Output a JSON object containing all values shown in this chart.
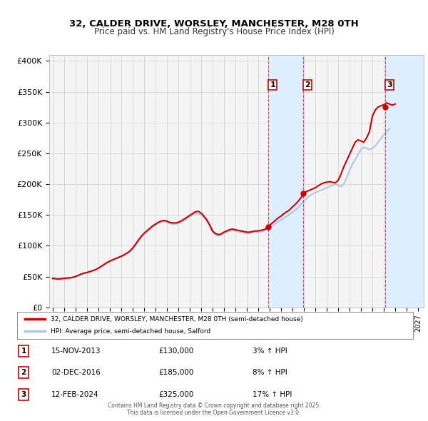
{
  "title_line1": "32, CALDER DRIVE, WORSLEY, MANCHESTER, M28 0TH",
  "title_line2": "Price paid vs. HM Land Registry's House Price Index (HPI)",
  "xlabel": "",
  "ylabel": "",
  "ylim": [
    0,
    410000
  ],
  "xlim_start": 1995.0,
  "xlim_end": 2027.5,
  "yticks": [
    0,
    50000,
    100000,
    150000,
    200000,
    250000,
    300000,
    350000,
    400000
  ],
  "ytick_labels": [
    "£0",
    "£50K",
    "£100K",
    "£150K",
    "£200K",
    "£250K",
    "£300K",
    "£350K",
    "£400K"
  ],
  "xticks": [
    1995,
    1996,
    1997,
    1998,
    1999,
    2000,
    2001,
    2002,
    2003,
    2004,
    2005,
    2006,
    2007,
    2008,
    2009,
    2010,
    2011,
    2012,
    2013,
    2014,
    2015,
    2016,
    2017,
    2018,
    2019,
    2020,
    2021,
    2022,
    2023,
    2024,
    2025,
    2026,
    2027
  ],
  "grid_color": "#cccccc",
  "bg_color": "#ffffff",
  "plot_bg_color": "#f5f5f5",
  "hpi_color": "#aac8e8",
  "price_color": "#cc0000",
  "sale_dot_color": "#cc0000",
  "event_shade_color": "#ddeeff",
  "transaction_lines_color": "#dd0000",
  "transactions": [
    {
      "date_year": 2013.88,
      "price": 130000,
      "label": "1",
      "percent": "3%",
      "date_str": "15-NOV-2013",
      "price_str": "£130,000"
    },
    {
      "date_year": 2016.92,
      "price": 185000,
      "label": "2",
      "percent": "8%",
      "date_str": "02-DEC-2016",
      "price_str": "£185,000"
    },
    {
      "date_year": 2024.12,
      "price": 325000,
      "label": "3",
      "percent": "17%",
      "date_str": "12-FEB-2024",
      "price_str": "£325,000"
    }
  ],
  "legend_property_label": "32, CALDER DRIVE, WORSLEY, MANCHESTER, M28 0TH (semi-detached house)",
  "legend_hpi_label": "HPI: Average price, semi-detached house, Salford",
  "footer": "Contains HM Land Registry data © Crown copyright and database right 2025.\nThis data is licensed under the Open Government Licence v3.0.",
  "hpi_data_x": [
    1995.0,
    1995.25,
    1995.5,
    1995.75,
    1996.0,
    1996.25,
    1996.5,
    1996.75,
    1997.0,
    1997.25,
    1997.5,
    1997.75,
    1998.0,
    1998.25,
    1998.5,
    1998.75,
    1999.0,
    1999.25,
    1999.5,
    1999.75,
    2000.0,
    2000.25,
    2000.5,
    2000.75,
    2001.0,
    2001.25,
    2001.5,
    2001.75,
    2002.0,
    2002.25,
    2002.5,
    2002.75,
    2003.0,
    2003.25,
    2003.5,
    2003.75,
    2004.0,
    2004.25,
    2004.5,
    2004.75,
    2005.0,
    2005.25,
    2005.5,
    2005.75,
    2006.0,
    2006.25,
    2006.5,
    2006.75,
    2007.0,
    2007.25,
    2007.5,
    2007.75,
    2008.0,
    2008.25,
    2008.5,
    2008.75,
    2009.0,
    2009.25,
    2009.5,
    2009.75,
    2010.0,
    2010.25,
    2010.5,
    2010.75,
    2011.0,
    2011.25,
    2011.5,
    2011.75,
    2012.0,
    2012.25,
    2012.5,
    2012.75,
    2013.0,
    2013.25,
    2013.5,
    2013.75,
    2014.0,
    2014.25,
    2014.5,
    2014.75,
    2015.0,
    2015.25,
    2015.5,
    2015.75,
    2016.0,
    2016.25,
    2016.5,
    2016.75,
    2017.0,
    2017.25,
    2017.5,
    2017.75,
    2018.0,
    2018.25,
    2018.5,
    2018.75,
    2019.0,
    2019.25,
    2019.5,
    2019.75,
    2020.0,
    2020.25,
    2020.5,
    2020.75,
    2021.0,
    2021.25,
    2021.5,
    2021.75,
    2022.0,
    2022.25,
    2022.5,
    2022.75,
    2023.0,
    2023.25,
    2023.5,
    2023.75,
    2024.0,
    2024.25,
    2024.5
  ],
  "hpi_data_y": [
    46000,
    45500,
    45000,
    45500,
    46000,
    46500,
    47000,
    48000,
    49500,
    51000,
    53000,
    55000,
    56000,
    57500,
    59000,
    60500,
    63000,
    66000,
    69000,
    72000,
    74000,
    76000,
    78000,
    80000,
    82000,
    84000,
    87000,
    90000,
    94000,
    100000,
    107000,
    113000,
    118000,
    122000,
    126000,
    130000,
    133000,
    136000,
    138000,
    139000,
    138000,
    136000,
    135000,
    135000,
    136000,
    138000,
    141000,
    144000,
    147000,
    150000,
    152000,
    152000,
    150000,
    146000,
    140000,
    132000,
    122000,
    118000,
    116000,
    117000,
    120000,
    122000,
    124000,
    125000,
    124000,
    123000,
    122000,
    121000,
    120000,
    120000,
    121000,
    122000,
    122000,
    123000,
    124000,
    126000,
    129000,
    132000,
    136000,
    139000,
    142000,
    145000,
    148000,
    151000,
    154000,
    158000,
    162000,
    167000,
    172000,
    177000,
    181000,
    184000,
    186000,
    188000,
    190000,
    192000,
    194000,
    196000,
    198000,
    200000,
    198000,
    196000,
    200000,
    210000,
    222000,
    232000,
    240000,
    248000,
    256000,
    260000,
    258000,
    256000,
    258000,
    262000,
    268000,
    274000,
    280000,
    285000,
    290000
  ],
  "price_data_x": [
    1995.0,
    1995.25,
    1995.5,
    1995.75,
    1996.0,
    1996.25,
    1996.5,
    1996.75,
    1997.0,
    1997.25,
    1997.5,
    1997.75,
    1998.0,
    1998.25,
    1998.5,
    1998.75,
    1999.0,
    1999.25,
    1999.5,
    1999.75,
    2000.0,
    2000.25,
    2000.5,
    2000.75,
    2001.0,
    2001.25,
    2001.5,
    2001.75,
    2002.0,
    2002.25,
    2002.5,
    2002.75,
    2003.0,
    2003.25,
    2003.5,
    2003.75,
    2004.0,
    2004.25,
    2004.5,
    2004.75,
    2005.0,
    2005.25,
    2005.5,
    2005.75,
    2006.0,
    2006.25,
    2006.5,
    2006.75,
    2007.0,
    2007.25,
    2007.5,
    2007.75,
    2008.0,
    2008.25,
    2008.5,
    2008.75,
    2009.0,
    2009.25,
    2009.5,
    2009.75,
    2010.0,
    2010.25,
    2010.5,
    2010.75,
    2011.0,
    2011.25,
    2011.5,
    2011.75,
    2012.0,
    2012.25,
    2012.5,
    2012.75,
    2013.0,
    2013.25,
    2013.5,
    2013.75,
    2013.88,
    2014.0,
    2014.25,
    2014.5,
    2014.75,
    2015.0,
    2015.25,
    2015.5,
    2015.75,
    2016.0,
    2016.25,
    2016.5,
    2016.75,
    2016.92,
    2017.0,
    2017.25,
    2017.5,
    2017.75,
    2018.0,
    2018.25,
    2018.5,
    2018.75,
    2019.0,
    2019.25,
    2019.5,
    2019.75,
    2020.0,
    2020.25,
    2020.5,
    2020.75,
    2021.0,
    2021.25,
    2021.5,
    2021.75,
    2022.0,
    2022.25,
    2022.5,
    2022.75,
    2023.0,
    2023.25,
    2023.5,
    2023.75,
    2024.0,
    2024.12,
    2024.25,
    2024.5,
    2024.75,
    2025.0
  ],
  "price_data_y": [
    47000,
    46500,
    46000,
    46500,
    47000,
    47500,
    48000,
    48500,
    50000,
    52000,
    54000,
    55500,
    56500,
    58000,
    59500,
    61000,
    63500,
    66500,
    69500,
    72500,
    75000,
    77000,
    79000,
    81000,
    83000,
    85000,
    88000,
    91000,
    96000,
    102000,
    109000,
    115000,
    120000,
    124000,
    128000,
    132000,
    135000,
    138000,
    140000,
    141000,
    140000,
    138000,
    137000,
    137000,
    138000,
    140000,
    143000,
    146000,
    149000,
    152000,
    155000,
    156000,
    153000,
    148000,
    142000,
    134000,
    124000,
    120000,
    118000,
    119000,
    122000,
    124000,
    126000,
    127000,
    126000,
    125000,
    124000,
    123000,
    122000,
    122000,
    123000,
    124000,
    124000,
    125000,
    126000,
    128000,
    130000,
    133000,
    137000,
    141000,
    145000,
    148000,
    152000,
    155000,
    158000,
    163000,
    167000,
    172000,
    178000,
    183000,
    185000,
    188000,
    190000,
    192000,
    194000,
    197000,
    200000,
    202000,
    203000,
    204000,
    203000,
    202000,
    206000,
    216000,
    228000,
    238000,
    248000,
    258000,
    268000,
    272000,
    270000,
    268000,
    275000,
    285000,
    310000,
    320000,
    325000,
    327000,
    329000,
    330000,
    332000,
    330000,
    328000,
    330000
  ]
}
